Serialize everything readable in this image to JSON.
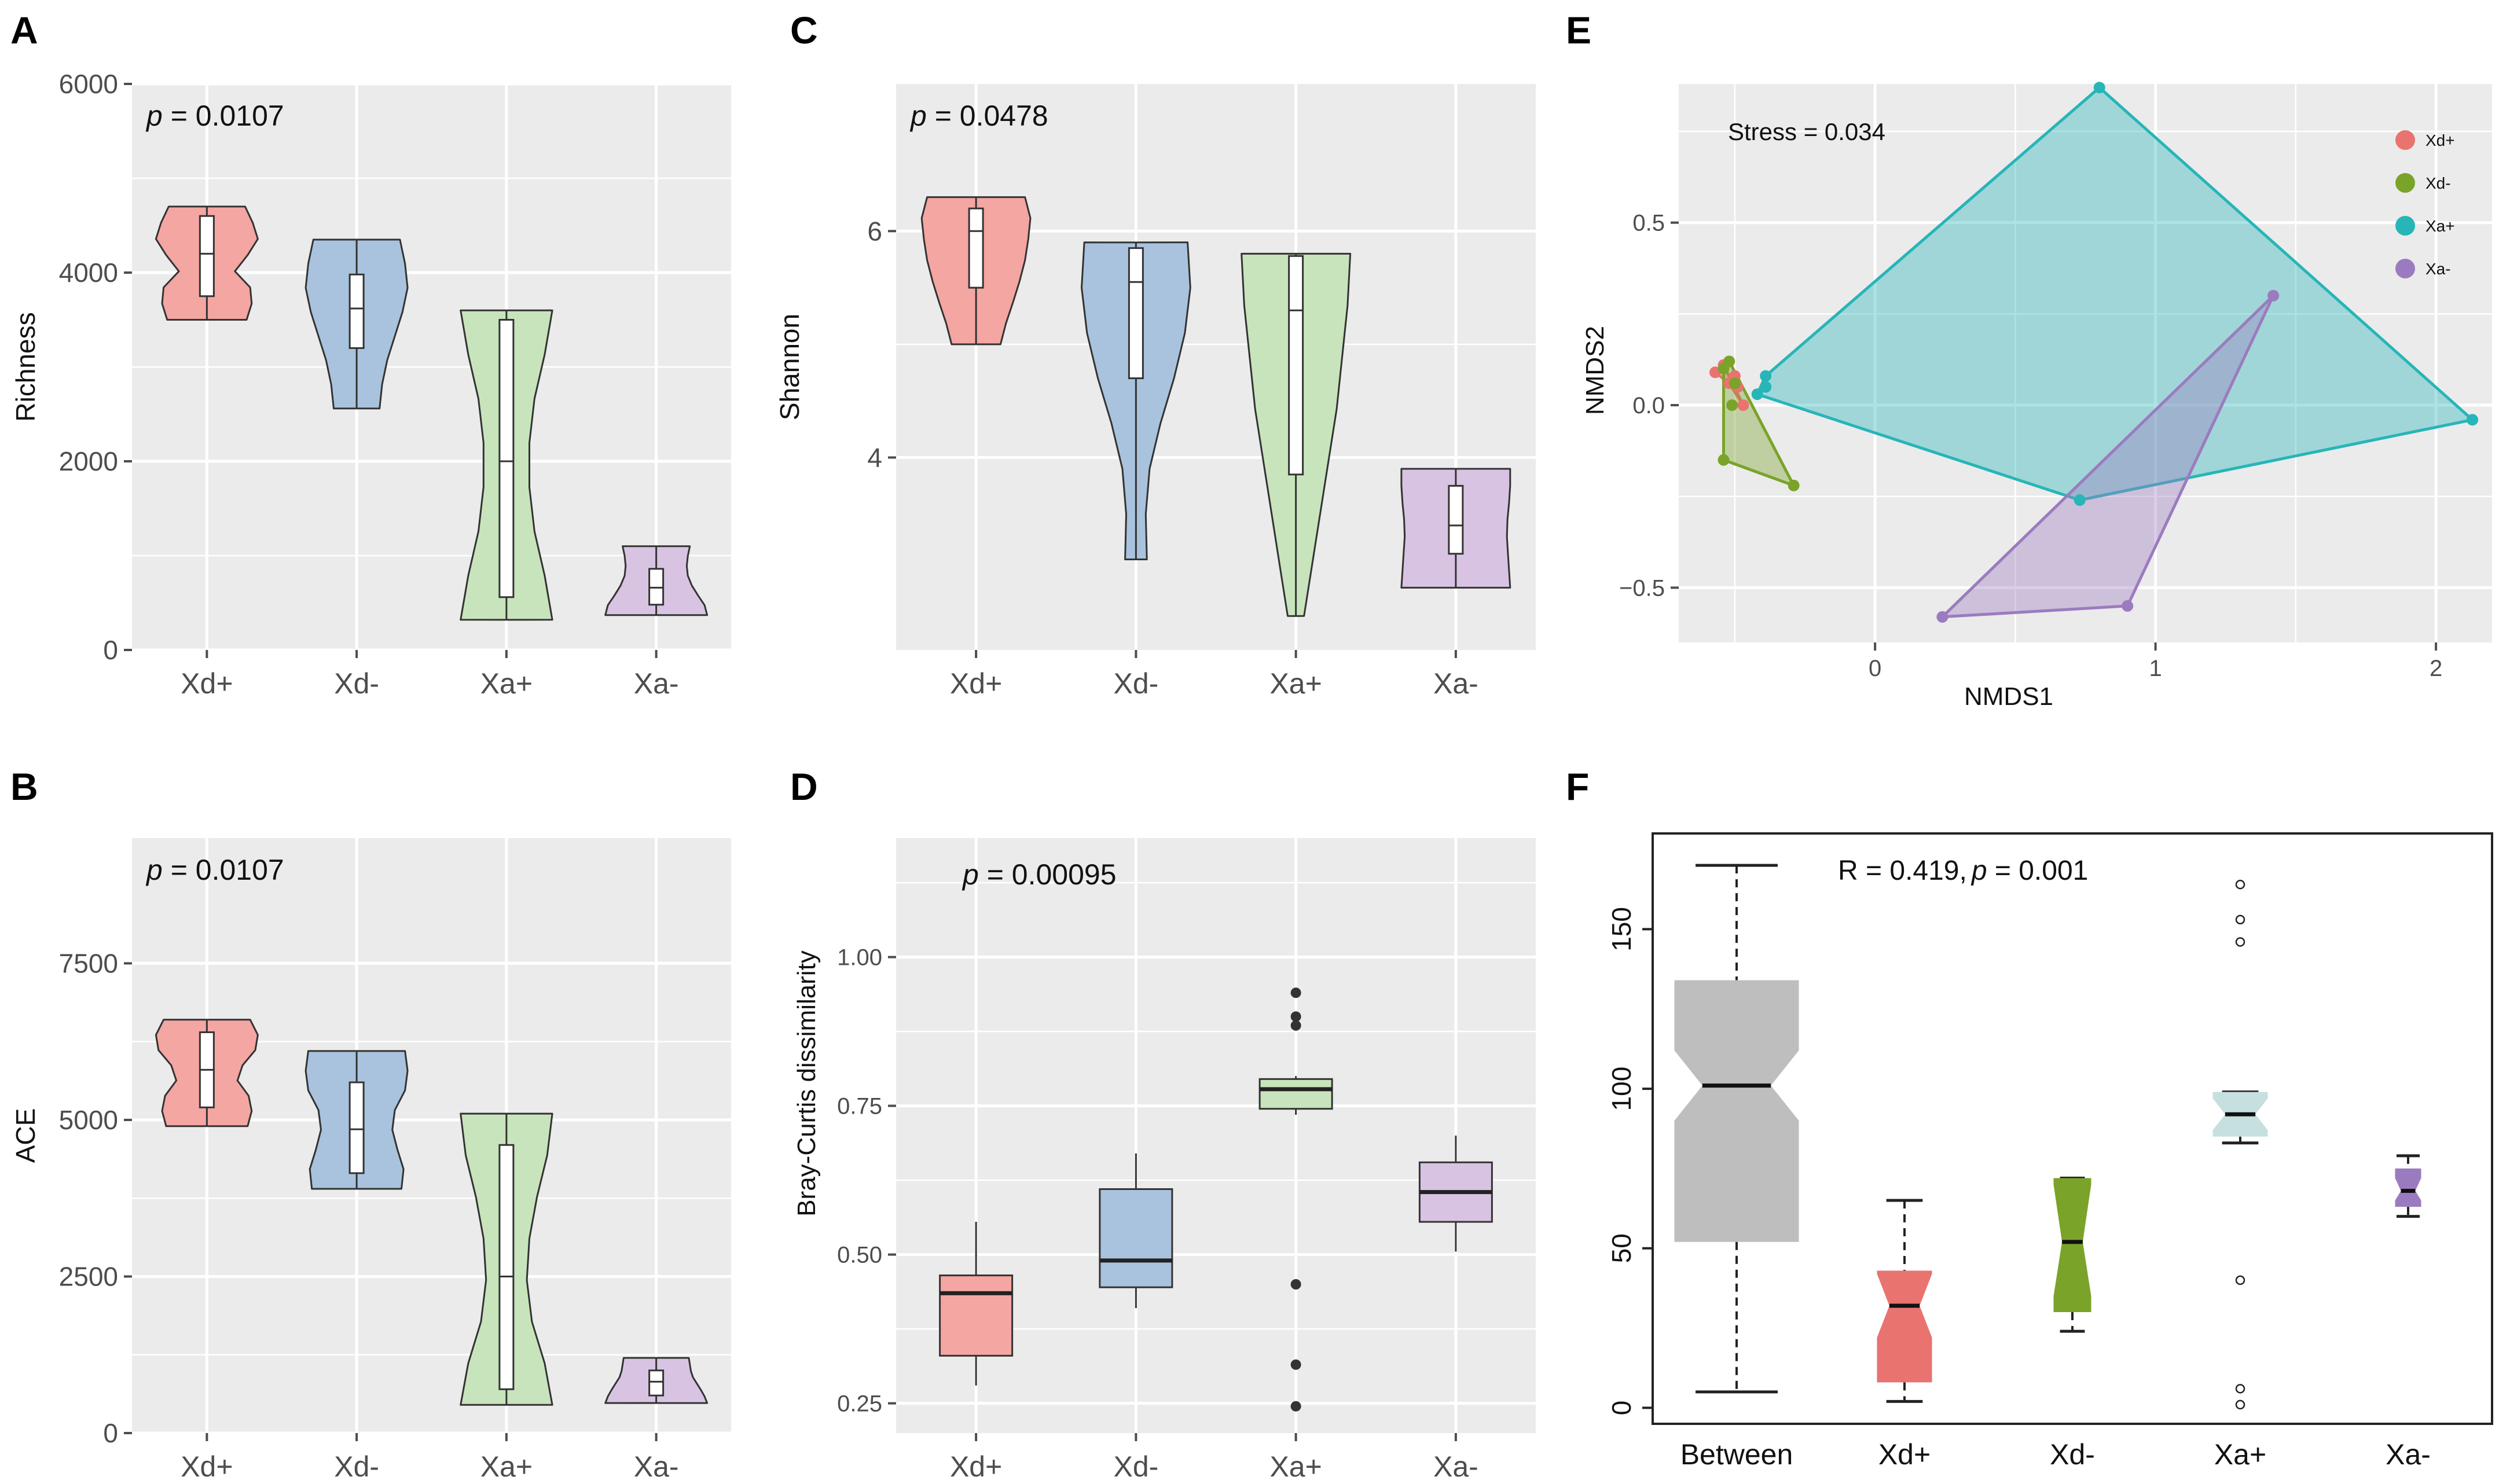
{
  "colors": {
    "panel_bg": "#ebebeb",
    "grid": "#ffffff",
    "text_dark": "#111111",
    "tick_label": "#4d4d4d",
    "outline": "#333333",
    "violin_fills": [
      "#f4a6a2",
      "#a9c3de",
      "#c8e4bc",
      "#d8c4e2"
    ],
    "nmds_colors": [
      "#e8736f",
      "#7aa329",
      "#27b5b8",
      "#9b7bbf"
    ],
    "anosim_fills": [
      "#bebebe",
      "#e8736f",
      "#7aa329",
      "#c6dfdf",
      "#9b7bbf"
    ]
  },
  "chart_data": [
    {
      "panel": "A",
      "type": "violin",
      "annotation_italic": "p",
      "annotation_rest": " = 0.0107",
      "categories": [
        "Xd+",
        "Xd-",
        "Xa+",
        "Xa-"
      ],
      "ylabel": "Richness",
      "ylim": [
        0,
        6000
      ],
      "yticks": [
        0,
        2000,
        4000,
        6000
      ],
      "violins": [
        {
          "min": 3500,
          "max": 4700,
          "q1": 3750,
          "median": 4200,
          "q3": 4600,
          "shape": [
            0.78,
            0.88,
            0.85,
            0.55,
            0.8,
            1.0,
            0.9,
            0.75
          ]
        },
        {
          "min": 2560,
          "max": 4350,
          "q1": 3200,
          "median": 3620,
          "q3": 3980,
          "shape": [
            0.45,
            0.5,
            0.6,
            0.75,
            0.9,
            1.0,
            0.95,
            0.85
          ]
        },
        {
          "min": 320,
          "max": 3600,
          "q1": 560,
          "median": 2000,
          "q3": 3500,
          "shape": [
            0.9,
            0.75,
            0.55,
            0.45,
            0.45,
            0.55,
            0.75,
            0.9
          ]
        },
        {
          "min": 370,
          "max": 1100,
          "q1": 480,
          "median": 660,
          "q3": 860,
          "shape": [
            1.0,
            0.95,
            0.82,
            0.7,
            0.62,
            0.6,
            0.62,
            0.66
          ]
        }
      ]
    },
    {
      "panel": "B",
      "type": "violin",
      "annotation_italic": "p",
      "annotation_rest": " = 0.0107",
      "categories": [
        "Xd+",
        "Xd-",
        "Xa+",
        "Xa-"
      ],
      "ylabel": "ACE",
      "ylim": [
        0,
        9500
      ],
      "yticks": [
        0,
        2500,
        5000,
        7500
      ],
      "violins": [
        {
          "min": 4900,
          "max": 6600,
          "q1": 5200,
          "median": 5800,
          "q3": 6400,
          "shape": [
            0.8,
            0.88,
            0.82,
            0.6,
            0.7,
            0.95,
            1.0,
            0.85
          ]
        },
        {
          "min": 3900,
          "max": 6100,
          "q1": 4150,
          "median": 4850,
          "q3": 5600,
          "shape": [
            0.88,
            0.92,
            0.8,
            0.7,
            0.75,
            0.95,
            1.0,
            0.95
          ]
        },
        {
          "min": 450,
          "max": 5100,
          "q1": 700,
          "median": 2500,
          "q3": 4600,
          "shape": [
            0.9,
            0.75,
            0.5,
            0.4,
            0.45,
            0.6,
            0.8,
            0.9
          ]
        },
        {
          "min": 480,
          "max": 1200,
          "q1": 600,
          "median": 820,
          "q3": 1000,
          "shape": [
            1.0,
            0.95,
            0.88,
            0.8,
            0.72,
            0.68,
            0.66,
            0.64
          ]
        }
      ]
    },
    {
      "panel": "C",
      "type": "violin",
      "annotation_italic": "p",
      "annotation_rest": " = 0.0478",
      "categories": [
        "Xd+",
        "Xd-",
        "Xa+",
        "Xa-"
      ],
      "ylabel": "Shannon",
      "ylim": [
        2.3,
        7.3
      ],
      "yticks": [
        4,
        6
      ],
      "violins": [
        {
          "min": 5.0,
          "max": 6.3,
          "q1": 5.5,
          "median": 6.0,
          "q3": 6.2,
          "shape": [
            0.45,
            0.55,
            0.68,
            0.8,
            0.9,
            0.96,
            1.0,
            0.9
          ]
        },
        {
          "min": 3.1,
          "max": 5.9,
          "q1": 4.7,
          "median": 5.55,
          "q3": 5.85,
          "shape": [
            0.2,
            0.18,
            0.25,
            0.45,
            0.7,
            0.9,
            1.0,
            0.95
          ]
        },
        {
          "min": 2.6,
          "max": 5.8,
          "q1": 3.85,
          "median": 5.3,
          "q3": 5.78,
          "shape": [
            0.15,
            0.3,
            0.45,
            0.6,
            0.75,
            0.85,
            0.95,
            1.0
          ]
        },
        {
          "min": 2.85,
          "max": 3.9,
          "q1": 3.15,
          "median": 3.4,
          "q3": 3.75,
          "shape": [
            1.0,
            0.98,
            0.96,
            0.94,
            0.95,
            0.98,
            1.0,
            1.0
          ]
        }
      ]
    },
    {
      "panel": "D",
      "type": "box",
      "annotation_italic": "p",
      "annotation_rest": " = 0.00095",
      "categories": [
        "Xd+",
        "Xd-",
        "Xa+",
        "Xa-"
      ],
      "ylabel": "Bray-Curtis dissimilarity",
      "ylim": [
        0.2,
        1.2
      ],
      "yticks": [
        0.25,
        0.5,
        0.75,
        1.0
      ],
      "ytick_labels": [
        "0.25",
        "0.50",
        "0.75",
        "1.00"
      ],
      "boxes": [
        {
          "low": 0.28,
          "q1": 0.33,
          "median": 0.435,
          "q3": 0.465,
          "high": 0.555,
          "outliers": []
        },
        {
          "low": 0.41,
          "q1": 0.445,
          "median": 0.49,
          "q3": 0.61,
          "high": 0.67,
          "outliers": []
        },
        {
          "low": 0.735,
          "q1": 0.745,
          "median": 0.778,
          "q3": 0.795,
          "high": 0.8,
          "outliers": [
            0.94,
            0.9,
            0.885,
            0.45,
            0.315,
            0.245
          ]
        },
        {
          "low": 0.505,
          "q1": 0.555,
          "median": 0.605,
          "q3": 0.655,
          "high": 0.7,
          "outliers": []
        }
      ]
    },
    {
      "panel": "E",
      "type": "scatter",
      "annotation": "Stress = 0.034",
      "xlabel": "NMDS1",
      "ylabel": "NMDS2",
      "xlim": [
        -0.7,
        2.2
      ],
      "ylim": [
        -0.65,
        0.88
      ],
      "xticks": [
        0,
        1,
        2
      ],
      "yticks": [
        -0.5,
        0.0,
        0.5
      ],
      "ytick_labels": [
        "−0.5",
        "0.0",
        "0.5"
      ],
      "series": [
        {
          "name": "Xd+",
          "points": [
            [
              -0.57,
              0.09
            ],
            [
              -0.54,
              0.11
            ],
            [
              -0.52,
              0.06
            ],
            [
              -0.5,
              0.08
            ],
            [
              -0.47,
              0.0
            ],
            [
              -0.49,
              0.05
            ]
          ],
          "hull": [
            [
              -0.57,
              0.09
            ],
            [
              -0.54,
              0.11
            ],
            [
              -0.47,
              0.0
            ],
            [
              -0.52,
              0.06
            ]
          ]
        },
        {
          "name": "Xd-",
          "points": [
            [
              -0.54,
              0.1
            ],
            [
              -0.52,
              0.12
            ],
            [
              -0.51,
              0.0
            ],
            [
              -0.54,
              -0.15
            ],
            [
              -0.29,
              -0.22
            ],
            [
              -0.5,
              0.06
            ]
          ],
          "hull": [
            [
              -0.54,
              0.1
            ],
            [
              -0.52,
              0.12
            ],
            [
              -0.29,
              -0.22
            ],
            [
              -0.54,
              -0.15
            ]
          ]
        },
        {
          "name": "Xa+",
          "points": [
            [
              0.8,
              0.87
            ],
            [
              2.13,
              -0.04
            ],
            [
              0.73,
              -0.26
            ],
            [
              -0.42,
              0.03
            ],
            [
              -0.39,
              0.05
            ],
            [
              -0.39,
              0.08
            ]
          ],
          "hull": [
            [
              0.8,
              0.87
            ],
            [
              2.13,
              -0.04
            ],
            [
              0.73,
              -0.26
            ],
            [
              -0.42,
              0.03
            ],
            [
              -0.39,
              0.08
            ]
          ]
        },
        {
          "name": "Xa-",
          "points": [
            [
              1.42,
              0.3
            ],
            [
              0.9,
              -0.55
            ],
            [
              0.24,
              -0.58
            ]
          ],
          "hull": [
            [
              1.42,
              0.3
            ],
            [
              0.9,
              -0.55
            ],
            [
              0.24,
              -0.58
            ]
          ]
        }
      ]
    },
    {
      "panel": "F",
      "type": "notched_box",
      "annotation_r_label": "R = ",
      "annotation_r_value": " 0.419,",
      "annotation_italic": "p",
      "annotation_p_value": " =  0.001",
      "categories": [
        "Between",
        "Xd+",
        "Xd-",
        "Xa+",
        "Xa-"
      ],
      "ylim": [
        -5,
        180
      ],
      "yticks": [
        0,
        50,
        100,
        150
      ],
      "boxes": [
        {
          "low": 5,
          "q1": 52,
          "median": 101,
          "q3": 134,
          "high": 170,
          "notch_lo": 90,
          "notch_hi": 112,
          "outliers": []
        },
        {
          "low": 2,
          "q1": 8,
          "median": 32,
          "q3": 43,
          "high": 65,
          "notch_lo": 22,
          "notch_hi": 42,
          "outliers": []
        },
        {
          "low": 24,
          "q1": 30,
          "median": 52,
          "q3": 72,
          "high": 72,
          "notch_lo": 35,
          "notch_hi": 70,
          "outliers": []
        },
        {
          "low": 83,
          "q1": 85,
          "median": 92,
          "q3": 99,
          "high": 99,
          "notch_lo": 87,
          "notch_hi": 97,
          "outliers": [
            164,
            153,
            146,
            40,
            6,
            1
          ]
        },
        {
          "low": 60,
          "q1": 63,
          "median": 68,
          "q3": 75,
          "high": 79,
          "notch_lo": 65,
          "notch_hi": 72,
          "outliers": []
        }
      ]
    }
  ]
}
